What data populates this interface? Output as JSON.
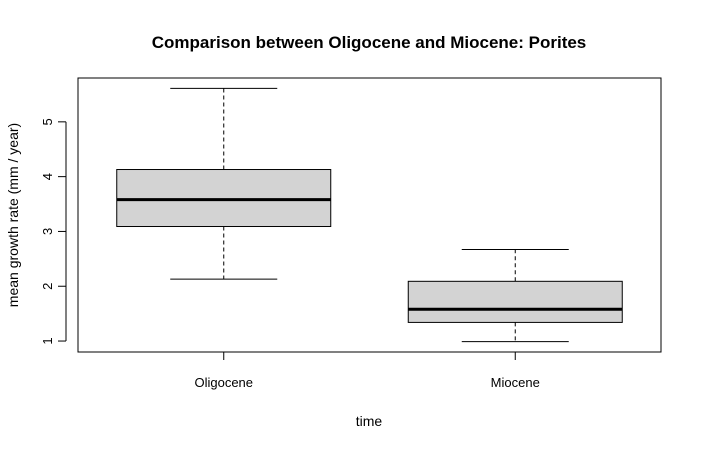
{
  "chart_data": {
    "type": "boxplot",
    "title": "Comparison between Oligocene and Miocene: Porites",
    "xlabel": "time",
    "ylabel": "mean growth rate (mm / year)",
    "categories": [
      "Oligocene",
      "Miocene"
    ],
    "ylim": [
      0.8,
      5.8
    ],
    "yticks": [
      1,
      2,
      3,
      4,
      5
    ],
    "grid": false,
    "box_fill": "#d3d3d3",
    "boxes": [
      {
        "category": "Oligocene",
        "whisker_low": 2.13,
        "q1": 3.09,
        "median": 3.58,
        "q3": 4.13,
        "whisker_high": 5.61
      },
      {
        "category": "Miocene",
        "whisker_low": 0.99,
        "q1": 1.34,
        "median": 1.58,
        "q3": 2.09,
        "whisker_high": 2.67
      }
    ]
  }
}
